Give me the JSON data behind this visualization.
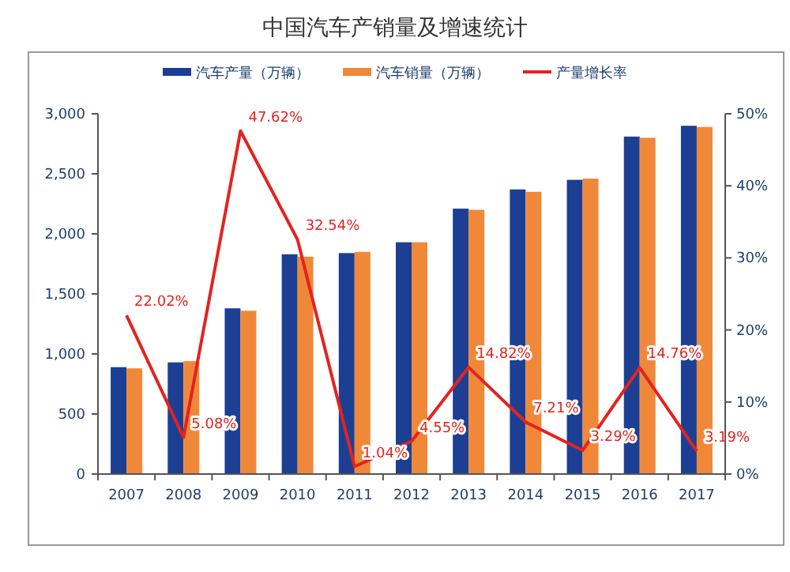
{
  "chart_data": {
    "type": "bar",
    "title": "中国汽车产销量及增速统计",
    "categories": [
      "2007",
      "2008",
      "2009",
      "2010",
      "2011",
      "2012",
      "2013",
      "2014",
      "2015",
      "2016",
      "2017"
    ],
    "series": [
      {
        "name": "汽车产量（万辆）",
        "color": "#1c3f94",
        "values": [
          890,
          930,
          1380,
          1830,
          1840,
          1930,
          2210,
          2370,
          2450,
          2810,
          2900
        ]
      },
      {
        "name": "汽车销量（万辆）",
        "color": "#f0883a",
        "values": [
          880,
          940,
          1360,
          1810,
          1850,
          1930,
          2200,
          2350,
          2460,
          2800,
          2890
        ]
      },
      {
        "name": "产量增长率",
        "color": "#e3231f",
        "type": "line",
        "axis": "y2",
        "marker": "none",
        "values": [
          22.02,
          5.08,
          47.62,
          32.54,
          1.04,
          4.55,
          14.82,
          7.21,
          3.29,
          14.76,
          3.19
        ],
        "value_labels": [
          "22.02%",
          "5.08%",
          "47.62%",
          "32.54%",
          "1.04%",
          "4.55%",
          "14.82%",
          "7.21%",
          "3.29%",
          "14.76%",
          "3.19%"
        ]
      }
    ],
    "ylim": [
      0,
      3000
    ],
    "yticks": [
      0,
      500,
      {
        "value": 1000,
        "label": "1,000"
      },
      {
        "value": 1500,
        "label": "1,500"
      },
      {
        "value": 2000,
        "label": "2,000"
      },
      {
        "value": 2500,
        "label": "2,500"
      },
      {
        "value": 3000,
        "label": "3,000"
      }
    ],
    "y2lim": [
      0,
      50
    ],
    "y2ticks": [
      {
        "value": 0,
        "label": "0%"
      },
      {
        "value": 10,
        "label": "10%"
      },
      {
        "value": 20,
        "label": "20%"
      },
      {
        "value": 30,
        "label": "30%"
      },
      {
        "value": 40,
        "label": "40%"
      },
      {
        "value": 50,
        "label": "50%"
      }
    ],
    "grid": false,
    "legend": "top"
  }
}
